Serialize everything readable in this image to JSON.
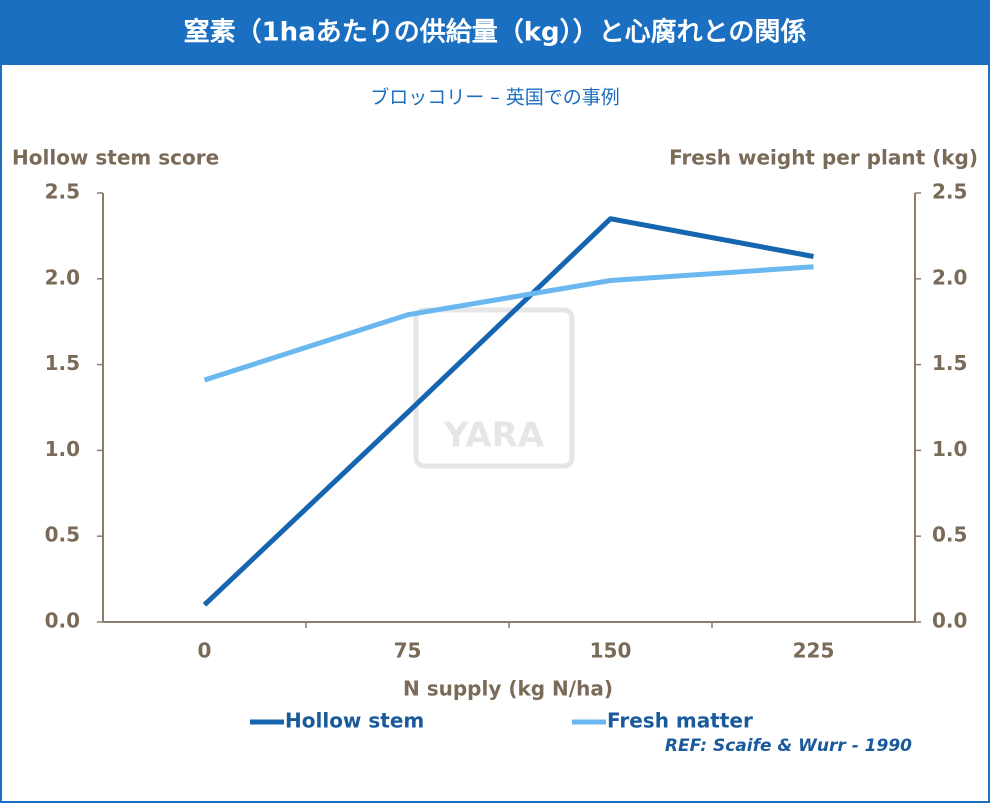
{
  "chart_data": {
    "type": "line",
    "title": "窒素（1haあたりの供給量（kg））と心腐れとの関係",
    "subtitle": "ブロッコリー – 英国での事例",
    "y_label": "Hollow stem score",
    "y2_label": "Fresh weight per plant (kg)",
    "x_label": "N supply (kg N/ha)",
    "categories": [
      "0",
      "75",
      "150",
      "225"
    ],
    "series": [
      {
        "name": "Hollow stem",
        "color": "#1565b0",
        "values": [
          0.1,
          1.22,
          2.35,
          2.13
        ]
      },
      {
        "name": "Fresh matter",
        "color": "#6bb8f0",
        "values": [
          1.41,
          1.79,
          1.99,
          2.07
        ],
        "axis": "y2"
      }
    ],
    "ylim": [
      0,
      2.5
    ],
    "yticks": [
      {
        "value": 0,
        "label": "0.0"
      },
      0.5,
      {
        "value": 1,
        "label": "1.0"
      },
      1.5,
      {
        "value": 2,
        "label": "2.0"
      },
      2.5
    ],
    "y2lim": [
      0,
      2.5
    ],
    "y2ticks": [
      {
        "value": 0,
        "label": "0.0"
      },
      0.5,
      {
        "value": 1,
        "label": "1.0"
      },
      1.5,
      {
        "value": 2,
        "label": "2.0"
      },
      2.5
    ],
    "reference": "REF: Scaife & Wurr - 1990",
    "watermark": "YARA"
  }
}
